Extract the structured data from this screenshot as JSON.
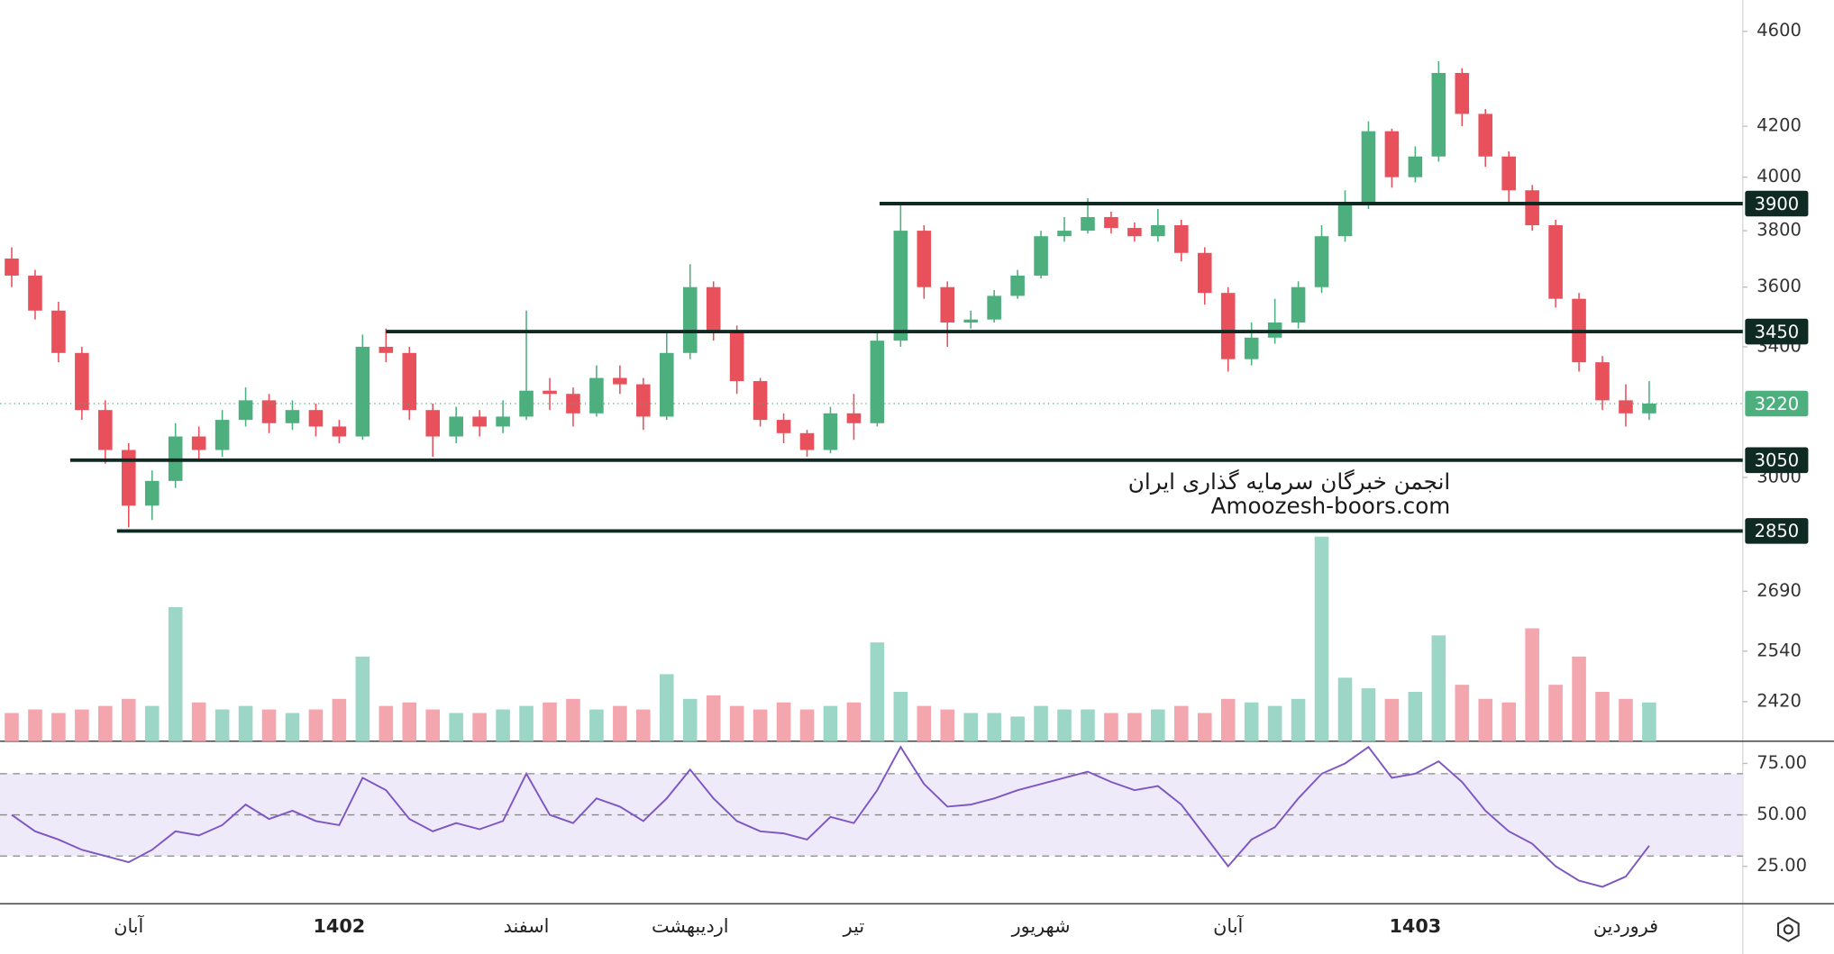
{
  "chart_data": {
    "type": "candlestick",
    "log": true,
    "categories": [
      null,
      null,
      null,
      null,
      null,
      "آبان",
      null,
      null,
      null,
      null,
      null,
      null,
      null,
      null,
      "1402",
      null,
      null,
      null,
      null,
      null,
      null,
      null,
      "اسفند",
      null,
      null,
      null,
      null,
      null,
      null,
      "اردیبهشت",
      null,
      null,
      null,
      null,
      null,
      null,
      "تیر",
      null,
      null,
      null,
      null,
      null,
      null,
      null,
      "شهریور",
      null,
      null,
      null,
      null,
      null,
      null,
      null,
      "آبان",
      null,
      null,
      null,
      null,
      null,
      null,
      null,
      "1403",
      null,
      null,
      null,
      null,
      null,
      null,
      null,
      null,
      "فروردین",
      null
    ],
    "open": [
      3700,
      3640,
      3520,
      3380,
      3200,
      3080,
      2920,
      2990,
      3120,
      3080,
      3170,
      3230,
      3160,
      3200,
      3150,
      3120,
      3400,
      3380,
      3200,
      3120,
      3180,
      3150,
      3180,
      3260,
      3250,
      3190,
      3300,
      3280,
      3180,
      3380,
      3600,
      3450,
      3290,
      3170,
      3130,
      3080,
      3190,
      3160,
      3420,
      3800,
      3600,
      3480,
      3490,
      3570,
      3640,
      3780,
      3800,
      3850,
      3810,
      3780,
      3820,
      3720,
      3580,
      3360,
      3430,
      3480,
      3600,
      3780,
      3900,
      4180,
      4000,
      4080,
      4420,
      4250,
      4080,
      3950,
      3820,
      3560,
      3350,
      3230,
      3190
    ],
    "high": [
      3740,
      3660,
      3550,
      3400,
      3230,
      3100,
      3020,
      3160,
      3150,
      3200,
      3270,
      3250,
      3230,
      3220,
      3170,
      3440,
      3460,
      3400,
      3220,
      3210,
      3200,
      3230,
      3520,
      3300,
      3270,
      3340,
      3340,
      3300,
      3450,
      3680,
      3620,
      3470,
      3300,
      3190,
      3140,
      3210,
      3250,
      3450,
      3900,
      3820,
      3620,
      3520,
      3590,
      3660,
      3800,
      3850,
      3920,
      3870,
      3830,
      3880,
      3840,
      3740,
      3600,
      3480,
      3560,
      3620,
      3820,
      3950,
      4220,
      4190,
      4120,
      4470,
      4440,
      4270,
      4100,
      3970,
      3840,
      3580,
      3370,
      3280,
      3290
    ],
    "low": [
      3600,
      3490,
      3350,
      3170,
      3040,
      2860,
      2880,
      2970,
      3050,
      3060,
      3150,
      3130,
      3140,
      3120,
      3100,
      3110,
      3350,
      3170,
      3060,
      3100,
      3120,
      3130,
      3170,
      3200,
      3150,
      3180,
      3250,
      3140,
      3170,
      3360,
      3420,
      3250,
      3150,
      3100,
      3060,
      3070,
      3110,
      3150,
      3400,
      3560,
      3400,
      3460,
      3480,
      3560,
      3630,
      3760,
      3790,
      3790,
      3760,
      3760,
      3690,
      3540,
      3320,
      3340,
      3410,
      3460,
      3580,
      3760,
      3880,
      3960,
      3980,
      4060,
      4200,
      4040,
      3900,
      3800,
      3530,
      3320,
      3200,
      3150,
      3170
    ],
    "close": [
      3640,
      3520,
      3380,
      3200,
      3080,
      2920,
      2990,
      3120,
      3080,
      3170,
      3230,
      3160,
      3200,
      3150,
      3120,
      3400,
      3380,
      3200,
      3120,
      3180,
      3150,
      3180,
      3260,
      3250,
      3190,
      3300,
      3280,
      3180,
      3380,
      3600,
      3450,
      3290,
      3170,
      3130,
      3080,
      3190,
      3160,
      3420,
      3800,
      3600,
      3480,
      3490,
      3570,
      3640,
      3780,
      3800,
      3850,
      3810,
      3780,
      3820,
      3720,
      3580,
      3360,
      3430,
      3480,
      3600,
      3780,
      3900,
      4180,
      4000,
      4080,
      4420,
      4250,
      4080,
      3950,
      3820,
      3560,
      3350,
      3230,
      3190,
      3220
    ],
    "volume": [
      8,
      9,
      8,
      9,
      10,
      12,
      10,
      38,
      11,
      9,
      10,
      9,
      8,
      9,
      12,
      24,
      10,
      11,
      9,
      8,
      8,
      9,
      10,
      11,
      12,
      9,
      10,
      9,
      19,
      12,
      13,
      10,
      9,
      11,
      9,
      10,
      11,
      28,
      14,
      10,
      9,
      8,
      8,
      7,
      10,
      9,
      9,
      8,
      8,
      9,
      10,
      8,
      12,
      11,
      10,
      12,
      58,
      18,
      15,
      12,
      14,
      30,
      16,
      12,
      11,
      32,
      16,
      24,
      14,
      12,
      11
    ],
    "up_color": "#4caf7d",
    "down_color": "#e8505b",
    "volume_up_color": "#9bd6c6",
    "volume_down_color": "#f3a6ae",
    "ylim": [
      2330,
      4740
    ],
    "yticks": [
      4600,
      4200,
      4000,
      3800,
      3600,
      3400,
      3000,
      2690,
      2540,
      2420
    ],
    "levels": [
      3900,
      3450,
      3050,
      2850
    ],
    "level_color": "#0f2a22",
    "current": 3220,
    "current_color": "#4caf7d",
    "watermark": [
      "انجمن خبرگان سرمایه گذاری ایران",
      "Amoozesh-boors.com"
    ],
    "rsi": {
      "values": [
        50,
        42,
        38,
        33,
        30,
        27,
        33,
        42,
        40,
        45,
        55,
        48,
        52,
        47,
        45,
        68,
        62,
        48,
        42,
        46,
        43,
        47,
        70,
        50,
        46,
        58,
        54,
        47,
        58,
        72,
        58,
        47,
        42,
        41,
        38,
        49,
        46,
        62,
        83,
        65,
        54,
        55,
        58,
        62,
        65,
        68,
        71,
        66,
        62,
        64,
        55,
        40,
        25,
        38,
        44,
        58,
        70,
        75,
        83,
        68,
        70,
        76,
        66,
        52,
        42,
        36,
        25,
        18,
        15,
        20,
        35
      ],
      "ylim": [
        6.8,
        85.8
      ],
      "yticks": [
        {
          "value": 75,
          "label": "75.00"
        },
        {
          "value": 50,
          "label": "50.00"
        },
        {
          "value": 25,
          "label": "25.00"
        }
      ],
      "levels": [
        30,
        50,
        70
      ],
      "color": "#7e57c2",
      "band_color": "#efeafa"
    }
  }
}
